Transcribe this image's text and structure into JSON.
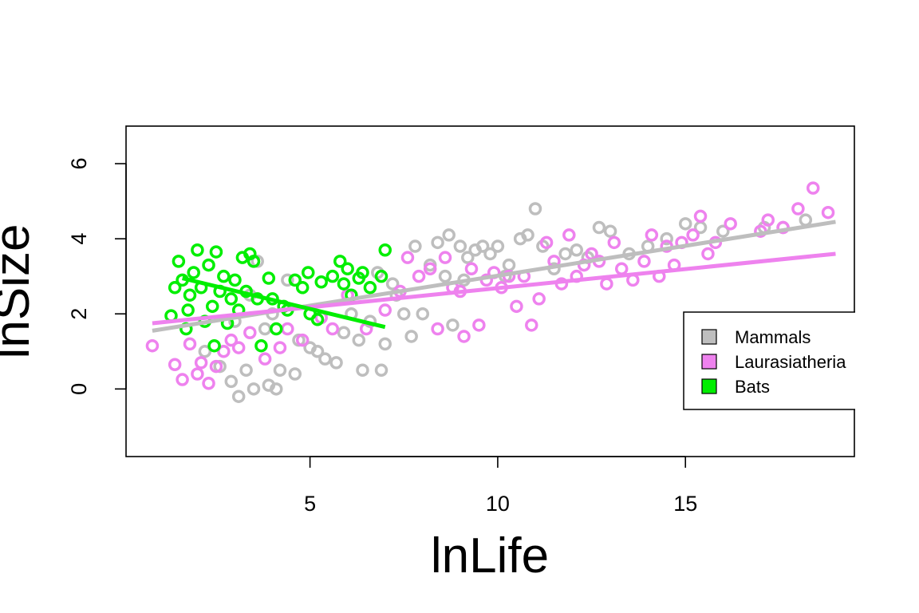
{
  "chart_data": {
    "type": "scatter",
    "title": "",
    "xlabel": "lnLife",
    "ylabel": "lnSize",
    "xlim": [
      0.1,
      19.5
    ],
    "ylim": [
      -1.8,
      7.0
    ],
    "xticks": [
      "5",
      "10",
      "15"
    ],
    "yticks": [
      "0",
      "2",
      "4",
      "6"
    ],
    "legend_position": "right",
    "grid": false,
    "marker": "open-circle",
    "series": [
      {
        "name": "Mammals",
        "color": "#bebebe",
        "fit": [
          [
            0.8,
            1.55
          ],
          [
            19.0,
            4.45
          ]
        ],
        "points": [
          [
            2.2,
            1.0
          ],
          [
            2.6,
            0.6
          ],
          [
            2.9,
            0.2
          ],
          [
            3.1,
            -0.2
          ],
          [
            3.3,
            0.5
          ],
          [
            3.5,
            0.0
          ],
          [
            3.0,
            1.8
          ],
          [
            3.4,
            2.5
          ],
          [
            3.6,
            3.4
          ],
          [
            3.8,
            1.6
          ],
          [
            4.0,
            2.0
          ],
          [
            4.1,
            0.0
          ],
          [
            4.2,
            0.5
          ],
          [
            4.4,
            2.9
          ],
          [
            4.6,
            0.4
          ],
          [
            3.9,
            0.1
          ],
          [
            4.7,
            1.3
          ],
          [
            5.0,
            1.1
          ],
          [
            5.2,
            1.0
          ],
          [
            5.4,
            0.8
          ],
          [
            5.7,
            0.7
          ],
          [
            5.9,
            1.5
          ],
          [
            6.1,
            2.0
          ],
          [
            6.3,
            1.3
          ],
          [
            6.4,
            0.5
          ],
          [
            6.6,
            1.8
          ],
          [
            6.9,
            0.5
          ],
          [
            7.0,
            1.2
          ],
          [
            7.3,
            2.5
          ],
          [
            7.5,
            2.0
          ],
          [
            7.7,
            1.4
          ],
          [
            7.8,
            3.8
          ],
          [
            8.0,
            2.0
          ],
          [
            8.2,
            3.3
          ],
          [
            8.4,
            3.9
          ],
          [
            8.6,
            3.0
          ],
          [
            8.7,
            4.1
          ],
          [
            8.8,
            1.7
          ],
          [
            9.0,
            3.8
          ],
          [
            9.2,
            3.5
          ],
          [
            9.4,
            3.7
          ],
          [
            9.6,
            3.8
          ],
          [
            9.8,
            3.6
          ],
          [
            10.0,
            3.8
          ],
          [
            10.3,
            3.3
          ],
          [
            10.6,
            4.0
          ],
          [
            10.8,
            4.1
          ],
          [
            11.0,
            4.8
          ],
          [
            11.2,
            3.8
          ],
          [
            11.5,
            3.2
          ],
          [
            11.8,
            3.6
          ],
          [
            12.1,
            3.7
          ],
          [
            12.4,
            3.5
          ],
          [
            12.7,
            4.3
          ],
          [
            13.0,
            4.2
          ],
          [
            13.5,
            3.6
          ],
          [
            14.0,
            3.8
          ],
          [
            14.5,
            4.0
          ],
          [
            15.0,
            4.4
          ],
          [
            15.4,
            4.3
          ],
          [
            16.0,
            4.2
          ],
          [
            17.1,
            4.3
          ],
          [
            17.6,
            4.3
          ],
          [
            18.2,
            4.5
          ],
          [
            6.8,
            3.1
          ],
          [
            7.2,
            2.8
          ],
          [
            9.1,
            2.9
          ],
          [
            10.2,
            3.0
          ]
        ]
      },
      {
        "name": "Laurasiatheria",
        "color": "#ee82ee",
        "fit": [
          [
            0.8,
            1.75
          ],
          [
            19.0,
            3.6
          ]
        ],
        "points": [
          [
            0.8,
            1.15
          ],
          [
            1.4,
            0.65
          ],
          [
            1.6,
            0.25
          ],
          [
            1.8,
            1.2
          ],
          [
            2.0,
            0.4
          ],
          [
            2.1,
            0.7
          ],
          [
            2.3,
            0.15
          ],
          [
            2.5,
            0.6
          ],
          [
            2.7,
            1.0
          ],
          [
            2.9,
            1.3
          ],
          [
            3.1,
            1.1
          ],
          [
            3.4,
            1.5
          ],
          [
            3.8,
            0.8
          ],
          [
            4.2,
            1.1
          ],
          [
            4.4,
            1.6
          ],
          [
            4.8,
            1.3
          ],
          [
            5.3,
            1.9
          ],
          [
            5.6,
            1.6
          ],
          [
            6.0,
            2.5
          ],
          [
            6.5,
            1.6
          ],
          [
            7.0,
            2.1
          ],
          [
            7.4,
            2.6
          ],
          [
            7.6,
            3.5
          ],
          [
            7.9,
            3.0
          ],
          [
            8.2,
            3.2
          ],
          [
            8.4,
            1.6
          ],
          [
            8.6,
            3.5
          ],
          [
            8.8,
            2.7
          ],
          [
            9.0,
            2.6
          ],
          [
            9.1,
            1.4
          ],
          [
            9.3,
            3.2
          ],
          [
            9.5,
            1.7
          ],
          [
            9.7,
            2.9
          ],
          [
            9.9,
            3.1
          ],
          [
            10.1,
            2.7
          ],
          [
            10.3,
            3.0
          ],
          [
            10.5,
            2.2
          ],
          [
            10.7,
            3.0
          ],
          [
            10.9,
            1.7
          ],
          [
            11.1,
            2.4
          ],
          [
            11.3,
            3.9
          ],
          [
            11.5,
            3.4
          ],
          [
            11.7,
            2.8
          ],
          [
            11.9,
            4.1
          ],
          [
            12.1,
            3.0
          ],
          [
            12.3,
            3.3
          ],
          [
            12.5,
            3.6
          ],
          [
            12.7,
            3.4
          ],
          [
            12.9,
            2.8
          ],
          [
            13.1,
            3.9
          ],
          [
            13.3,
            3.2
          ],
          [
            13.6,
            2.9
          ],
          [
            13.9,
            3.4
          ],
          [
            14.1,
            4.1
          ],
          [
            14.3,
            3.0
          ],
          [
            14.5,
            3.8
          ],
          [
            14.7,
            3.3
          ],
          [
            14.9,
            3.9
          ],
          [
            15.2,
            4.1
          ],
          [
            15.4,
            4.6
          ],
          [
            15.6,
            3.6
          ],
          [
            15.8,
            3.9
          ],
          [
            16.2,
            4.4
          ],
          [
            17.0,
            4.2
          ],
          [
            17.2,
            4.5
          ],
          [
            17.6,
            4.3
          ],
          [
            18.0,
            4.8
          ],
          [
            18.4,
            5.35
          ],
          [
            18.8,
            4.7
          ]
        ]
      },
      {
        "name": "Bats",
        "color": "#00ee00",
        "fit": [
          [
            1.6,
            2.95
          ],
          [
            7.0,
            1.65
          ]
        ],
        "points": [
          [
            1.3,
            1.95
          ],
          [
            1.4,
            2.7
          ],
          [
            1.5,
            3.4
          ],
          [
            1.6,
            2.9
          ],
          [
            1.7,
            1.6
          ],
          [
            1.75,
            2.1
          ],
          [
            1.8,
            2.5
          ],
          [
            1.9,
            3.1
          ],
          [
            2.0,
            3.7
          ],
          [
            2.1,
            2.7
          ],
          [
            2.2,
            1.8
          ],
          [
            2.3,
            3.3
          ],
          [
            2.4,
            2.2
          ],
          [
            2.45,
            1.15
          ],
          [
            2.5,
            3.65
          ],
          [
            2.6,
            2.6
          ],
          [
            2.7,
            3.0
          ],
          [
            2.8,
            1.75
          ],
          [
            2.9,
            2.4
          ],
          [
            3.0,
            2.9
          ],
          [
            3.1,
            2.1
          ],
          [
            3.2,
            3.5
          ],
          [
            3.3,
            2.6
          ],
          [
            3.4,
            3.6
          ],
          [
            3.5,
            3.4
          ],
          [
            3.6,
            2.4
          ],
          [
            3.7,
            1.15
          ],
          [
            3.9,
            2.95
          ],
          [
            4.0,
            2.4
          ],
          [
            4.1,
            1.6
          ],
          [
            4.3,
            2.2
          ],
          [
            4.4,
            2.1
          ],
          [
            4.6,
            2.9
          ],
          [
            4.8,
            2.7
          ],
          [
            4.95,
            3.1
          ],
          [
            5.0,
            2.0
          ],
          [
            5.2,
            1.85
          ],
          [
            5.3,
            2.85
          ],
          [
            5.6,
            3.0
          ],
          [
            5.8,
            3.4
          ],
          [
            5.9,
            2.8
          ],
          [
            6.0,
            3.2
          ],
          [
            6.1,
            2.5
          ],
          [
            6.3,
            2.95
          ],
          [
            6.4,
            3.1
          ],
          [
            6.6,
            2.7
          ],
          [
            6.9,
            3.0
          ],
          [
            7.0,
            3.7
          ]
        ]
      }
    ]
  }
}
